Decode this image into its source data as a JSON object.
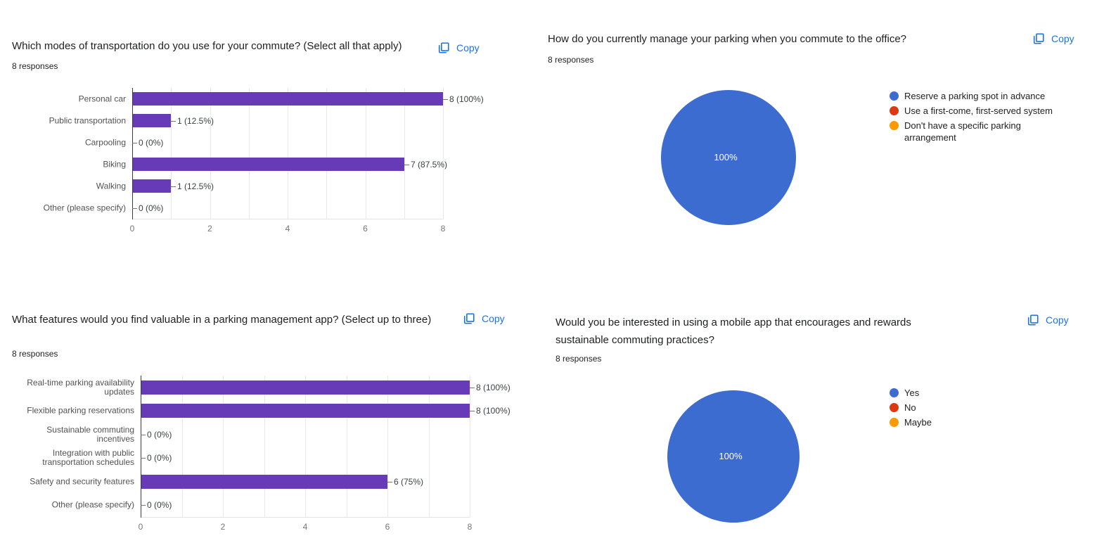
{
  "ui": {
    "copy_label": "Copy",
    "colors": {
      "bar_purple": "#673ab7",
      "copy_blue": "#1a73e8",
      "pie_blue": "#3c6cd0",
      "legend_red": "#dc3912",
      "legend_orange": "#ff9900"
    }
  },
  "chart_data": [
    {
      "type": "bar",
      "title": "Which modes of transportation do you use for your commute? (Select all that apply)",
      "responses_label": "8 responses",
      "categories": [
        "Personal car",
        "Public transportation",
        "Carpooling",
        "Biking",
        "Walking",
        "Other (please specify)"
      ],
      "values": [
        8,
        1,
        0,
        7,
        1,
        0
      ],
      "value_labels": [
        "8 (100%)",
        "1 (12.5%)",
        "0 (0%)",
        "7 (87.5%)",
        "1 (12.5%)",
        "0 (0%)"
      ],
      "xlim": [
        0,
        8
      ],
      "xticks": [
        0,
        2,
        4,
        6,
        8
      ],
      "bar_color": "#673ab7",
      "grid": true,
      "orientation": "horizontal"
    },
    {
      "type": "pie",
      "title": "How do you currently manage your parking when you commute to the office?",
      "responses_label": "8 responses",
      "slices": [
        {
          "label": "Reserve a parking spot in advance",
          "value": 8,
          "pct": 100,
          "color": "#3c6cd0"
        },
        {
          "label": "Use a first-come, first-served system",
          "value": 0,
          "pct": 0,
          "color": "#dc3912"
        },
        {
          "label": "Don't have a specific parking arrangement",
          "value": 0,
          "pct": 0,
          "color": "#ff9900"
        }
      ],
      "slice_label": "100%",
      "legend_position": "right"
    },
    {
      "type": "bar",
      "title": "What features would you find valuable in a parking management app? (Select up to three)",
      "responses_label": "8 responses",
      "categories": [
        "Real-time parking availability updates",
        "Flexible parking reservations",
        "Sustainable commuting incentives",
        "Integration with public transportation schedules",
        "Safety and security features",
        "Other (please specify)"
      ],
      "values": [
        8,
        8,
        0,
        0,
        6,
        0
      ],
      "value_labels": [
        "8 (100%)",
        "8 (100%)",
        "0 (0%)",
        "0 (0%)",
        "6 (75%)",
        "0 (0%)"
      ],
      "xlim": [
        0,
        8
      ],
      "xticks": [
        0,
        2,
        4,
        6,
        8
      ],
      "bar_color": "#673ab7",
      "grid": true,
      "orientation": "horizontal"
    },
    {
      "type": "pie",
      "title": "Would you be interested in using a mobile app that encourages and rewards sustainable commuting practices?",
      "responses_label": "8 responses",
      "slices": [
        {
          "label": "Yes",
          "value": 8,
          "pct": 100,
          "color": "#3c6cd0"
        },
        {
          "label": "No",
          "value": 0,
          "pct": 0,
          "color": "#dc3912"
        },
        {
          "label": "Maybe",
          "value": 0,
          "pct": 0,
          "color": "#ff9900"
        }
      ],
      "slice_label": "100%",
      "legend_position": "right"
    }
  ]
}
